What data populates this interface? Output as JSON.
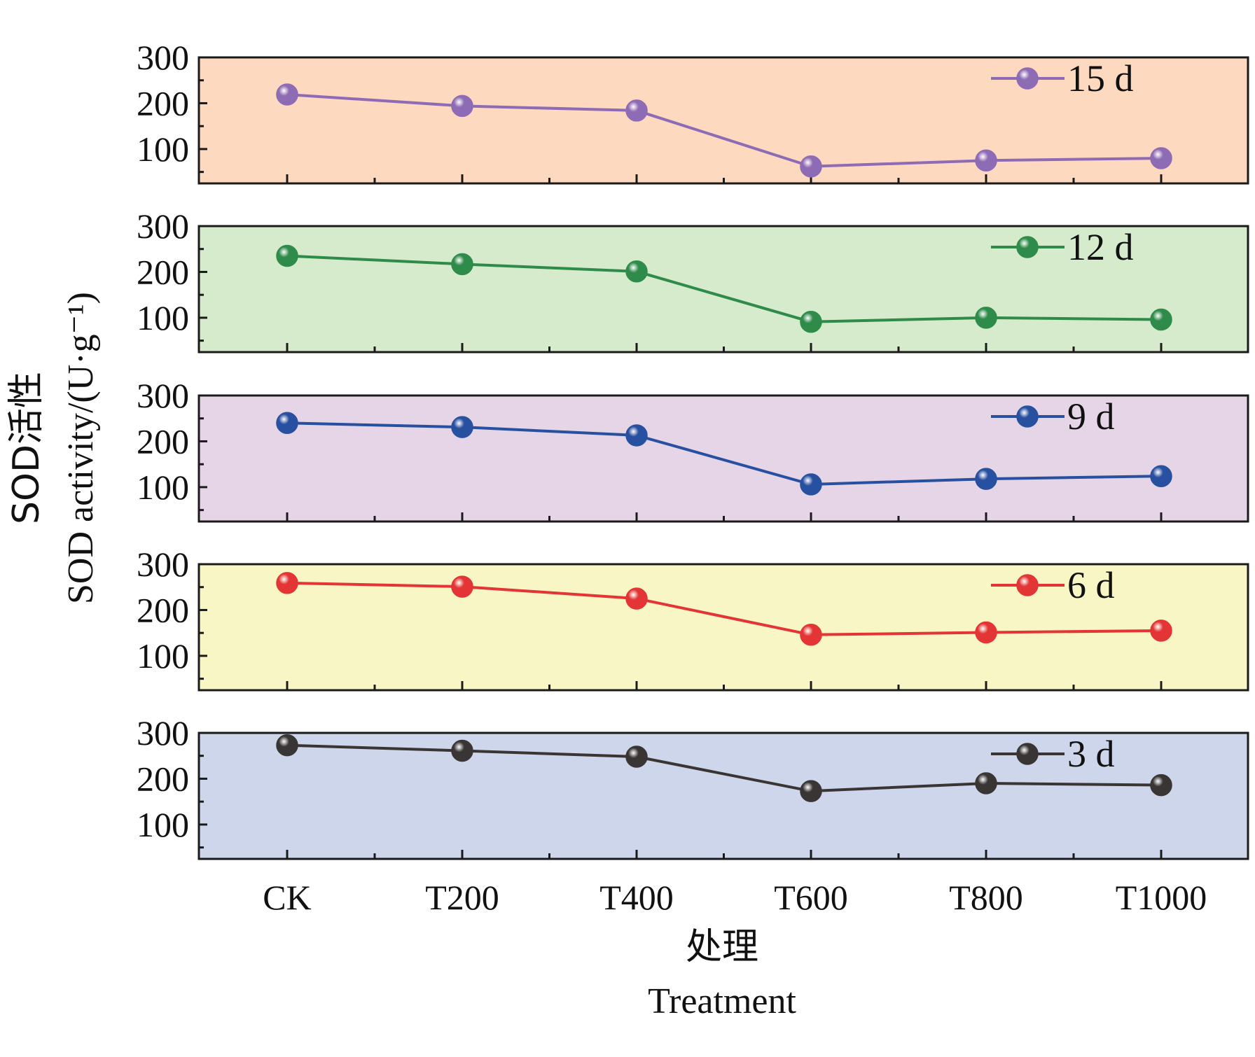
{
  "chart_data": {
    "type": "line",
    "categories": [
      "CK",
      "T200",
      "T400",
      "T600",
      "T800",
      "T1000"
    ],
    "xlabel_cn": "处理",
    "xlabel_en": "Treatment",
    "ylabel_cn": "SOD活性",
    "ylabel_en": "SOD activity/(U·g⁻¹)",
    "ylim": [
      25,
      300
    ],
    "yticks": [
      100,
      200,
      300
    ],
    "panels": [
      {
        "name": "15 d",
        "color": "#8e6bb5",
        "bg": "#fdd9c0",
        "values": [
          219,
          194,
          184,
          62,
          75,
          80
        ]
      },
      {
        "name": "12 d",
        "color": "#2e8b4a",
        "bg": "#d5ebcc",
        "values": [
          235,
          217,
          201,
          91,
          100,
          96
        ]
      },
      {
        "name": "9 d",
        "color": "#2850a0",
        "bg": "#e5d5e6",
        "values": [
          240,
          231,
          213,
          106,
          118,
          124
        ]
      },
      {
        "name": "6 d",
        "color": "#e33535",
        "bg": "#f9f6c6",
        "values": [
          259,
          251,
          225,
          146,
          151,
          155
        ]
      },
      {
        "name": "3 d",
        "color": "#3a3535",
        "bg": "#cdd6ea",
        "values": [
          273,
          261,
          248,
          173,
          190,
          186
        ]
      }
    ]
  }
}
